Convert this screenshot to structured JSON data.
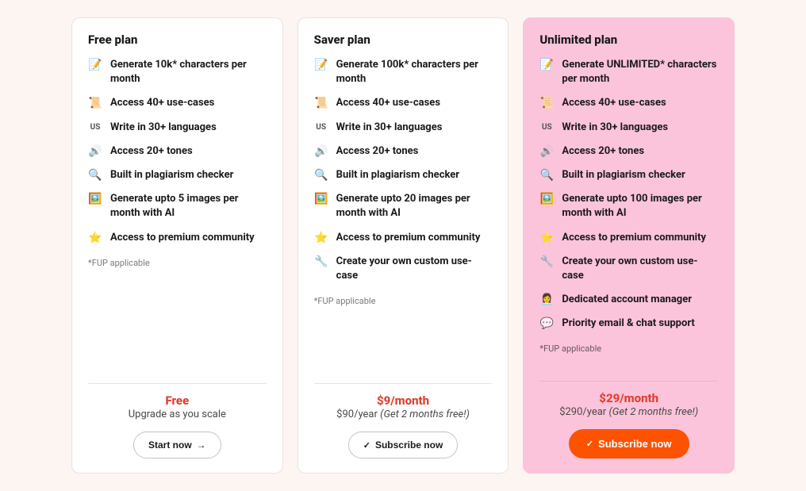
{
  "layout": {
    "page_bg": "#fdf5f2",
    "card_bg": "#ffffff",
    "card_border": "#e9e3e0",
    "highlight_bg": "#fbc4db",
    "accent_color": "#e0402f",
    "cta_solid_bg": "#fd5200",
    "text_color": "#1a1a1a",
    "muted_color": "#7f7a77"
  },
  "icons": {
    "doc": "📝",
    "scroll": "📜",
    "us": "US",
    "speaker": "🔊",
    "magnifier": "🔍",
    "image": "🖼️",
    "star": "⭐",
    "wrench": "🔧",
    "person": "👩‍💼",
    "chat": "💬"
  },
  "plans": [
    {
      "key": "free",
      "title": "Free plan",
      "highlight": false,
      "features": [
        {
          "icon": "doc",
          "text": "Generate 10k* characters per month"
        },
        {
          "icon": "scroll",
          "text": "Access 40+ use-cases"
        },
        {
          "icon": "us",
          "text": "Write in 30+ languages"
        },
        {
          "icon": "speaker",
          "text": "Access 20+ tones"
        },
        {
          "icon": "magnifier",
          "text": "Built in plagiarism checker"
        },
        {
          "icon": "image",
          "text": "Generate upto 5 images per month with AI"
        },
        {
          "icon": "star",
          "text": "Access to premium community"
        }
      ],
      "fup": "*FUP applicable",
      "price_top": "Free",
      "price_sub": "Upgrade as you scale",
      "price_sub_italic": "",
      "cta": {
        "label": "Start now",
        "variant": "outline",
        "symbol": "arrow"
      }
    },
    {
      "key": "saver",
      "title": "Saver plan",
      "highlight": false,
      "features": [
        {
          "icon": "doc",
          "text": "Generate 100k* characters per month"
        },
        {
          "icon": "scroll",
          "text": "Access 40+ use-cases"
        },
        {
          "icon": "us",
          "text": "Write in 30+ languages"
        },
        {
          "icon": "speaker",
          "text": "Access 20+ tones"
        },
        {
          "icon": "magnifier",
          "text": "Built in plagiarism checker"
        },
        {
          "icon": "image",
          "text": "Generate upto 20 images per month with AI"
        },
        {
          "icon": "star",
          "text": "Access to premium community"
        },
        {
          "icon": "wrench",
          "text": "Create your own custom use-case"
        }
      ],
      "fup": "*FUP applicable",
      "price_top": "$9/month",
      "price_sub": "$90/year ",
      "price_sub_italic": "(Get 2 months free!)",
      "cta": {
        "label": "Subscribe now",
        "variant": "outline",
        "symbol": "check"
      }
    },
    {
      "key": "unlimited",
      "title": "Unlimited plan",
      "highlight": true,
      "features": [
        {
          "icon": "doc",
          "text": "Generate UNLIMITED* characters per month"
        },
        {
          "icon": "scroll",
          "text": "Access 40+ use-cases"
        },
        {
          "icon": "us",
          "text": "Write in 30+ languages"
        },
        {
          "icon": "speaker",
          "text": "Access 20+ tones"
        },
        {
          "icon": "magnifier",
          "text": "Built in plagiarism checker"
        },
        {
          "icon": "image",
          "text": "Generate upto 100 images per month with AI"
        },
        {
          "icon": "star",
          "text": "Access to premium community"
        },
        {
          "icon": "wrench",
          "text": "Create your own custom use-case"
        },
        {
          "icon": "person",
          "text": "Dedicated account manager"
        },
        {
          "icon": "chat",
          "text": "Priority email & chat support"
        }
      ],
      "fup": "*FUP applicable",
      "price_top": "$29/month",
      "price_sub": "$290/year ",
      "price_sub_italic": "(Get 2 months free!)",
      "cta": {
        "label": "Subscribe now",
        "variant": "solid",
        "symbol": "check"
      }
    }
  ]
}
